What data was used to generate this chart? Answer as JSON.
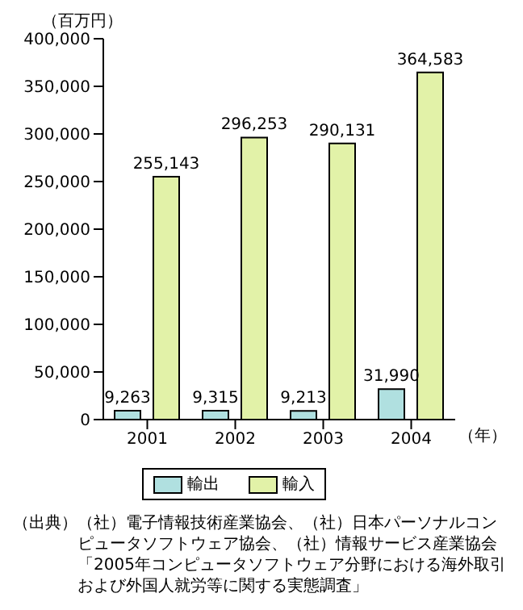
{
  "chart_data": {
    "type": "bar",
    "ylabel": "（百万円）",
    "xlabel": "（年）",
    "categories": [
      "2001",
      "2002",
      "2003",
      "2004"
    ],
    "series": [
      {
        "name": "輸出",
        "color": "#b0e0e0",
        "values": [
          9263,
          9315,
          9213,
          31990
        ],
        "value_labels": [
          "9,263",
          "9,315",
          "9,213",
          "31,990"
        ]
      },
      {
        "name": "輸入",
        "color": "#e2f2a8",
        "values": [
          255143,
          296253,
          290131,
          364583
        ],
        "value_labels": [
          "255,143",
          "296,253",
          "290,131",
          "364,583"
        ]
      }
    ],
    "ylim": [
      0,
      400000
    ],
    "yticks": [
      0,
      {
        "value": 50000,
        "label": "50,000"
      },
      {
        "value": 100000,
        "label": "100,000"
      },
      {
        "value": 150000,
        "label": "150,000"
      },
      {
        "value": 200000,
        "label": "200,000"
      },
      {
        "value": 250000,
        "label": "250,000"
      },
      {
        "value": 300000,
        "label": "300,000"
      },
      {
        "value": 350000,
        "label": "350,000"
      },
      {
        "value": 400000,
        "label": "400,000"
      }
    ],
    "legend": "bottom",
    "grid": false,
    "annotations": [
      "（出典）（社）電子情報技術産業協会、（社）日本パーソナルコンピュータソフトウェア協会、（社）情報サービス産業協会「2005年コンピュータソフトウェア分野における海外取引および外国人就労等に関する実態調査」"
    ]
  }
}
